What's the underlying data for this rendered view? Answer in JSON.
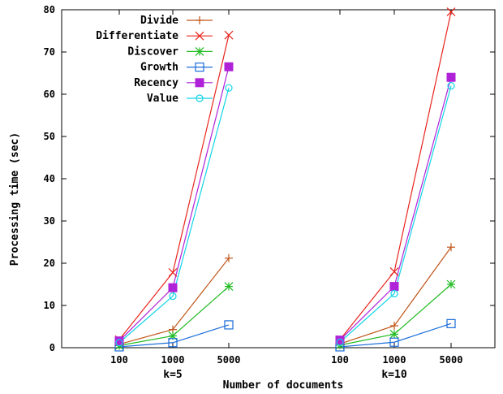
{
  "chart_data": {
    "type": "line",
    "title": "",
    "xlabel": "Number of documents",
    "ylabel": "Processing time (sec)",
    "ylim": [
      0,
      80
    ],
    "yticks": [
      0,
      10,
      20,
      30,
      40,
      50,
      60,
      70,
      80
    ],
    "grid": false,
    "legend_position": "top-left",
    "groups": [
      {
        "label": "k=5",
        "categories": [
          "100",
          "1000",
          "5000"
        ]
      },
      {
        "label": "k=10",
        "categories": [
          "100",
          "1000",
          "5000"
        ]
      }
    ],
    "series": [
      {
        "name": "Divide",
        "color": "#c0561a",
        "marker": "plus",
        "values": [
          [
            0.8,
            4.3,
            21.2
          ],
          [
            0.9,
            5.2,
            23.8
          ]
        ]
      },
      {
        "name": "Differentiate",
        "color": "#e8251e",
        "marker": "cross",
        "values": [
          [
            1.9,
            17.8,
            74.0
          ],
          [
            1.9,
            18.0,
            79.5
          ]
        ]
      },
      {
        "name": "Discover",
        "color": "#22bb22",
        "marker": "star",
        "values": [
          [
            0.5,
            2.8,
            14.5
          ],
          [
            0.6,
            3.2,
            15.0
          ]
        ]
      },
      {
        "name": "Growth",
        "color": "#1a6cd8",
        "marker": "open-square",
        "values": [
          [
            0.2,
            1.2,
            5.4
          ],
          [
            0.2,
            1.3,
            5.7
          ]
        ]
      },
      {
        "name": "Recency",
        "color": "#b022d8",
        "marker": "filled-square",
        "values": [
          [
            1.6,
            14.2,
            66.5
          ],
          [
            1.8,
            14.5,
            64.0
          ]
        ]
      },
      {
        "name": "Value",
        "color": "#11d4e6",
        "marker": "open-circle",
        "values": [
          [
            1.2,
            12.2,
            61.5
          ],
          [
            1.3,
            12.8,
            62.0
          ]
        ]
      }
    ]
  }
}
